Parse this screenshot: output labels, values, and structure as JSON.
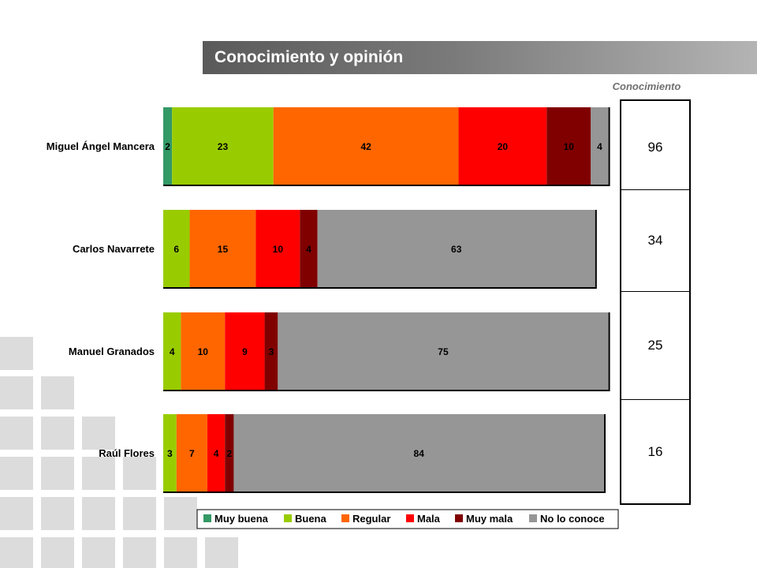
{
  "page": {
    "title": "Conocimiento y opinión"
  },
  "knowledge": {
    "label": "Conocimiento",
    "values": [
      "96",
      "34",
      "25",
      "16"
    ]
  },
  "chart_data": {
    "type": "bar",
    "orientation": "horizontal",
    "stacked": true,
    "categories": [
      "Miguel Ángel Mancera",
      "Carlos Navarrete",
      "Manuel Granados",
      "Raúl Flores"
    ],
    "series": [
      {
        "name": "Muy buena",
        "color": "#339966",
        "values": [
          2,
          0,
          0,
          0
        ]
      },
      {
        "name": "Buena",
        "color": "#99CC00",
        "values": [
          23,
          6,
          4,
          3
        ]
      },
      {
        "name": "Regular",
        "color": "#FF6600",
        "values": [
          42,
          15,
          10,
          7
        ]
      },
      {
        "name": "Mala",
        "color": "#FF0000",
        "values": [
          20,
          10,
          9,
          4
        ]
      },
      {
        "name": "Muy mala",
        "color": "#800000",
        "values": [
          10,
          4,
          3,
          2
        ]
      },
      {
        "name": "No lo conoce",
        "color": "#969696",
        "values": [
          4,
          63,
          75,
          84
        ]
      }
    ],
    "xlim": [
      0,
      100
    ],
    "legend": "bottom",
    "grid": false
  }
}
